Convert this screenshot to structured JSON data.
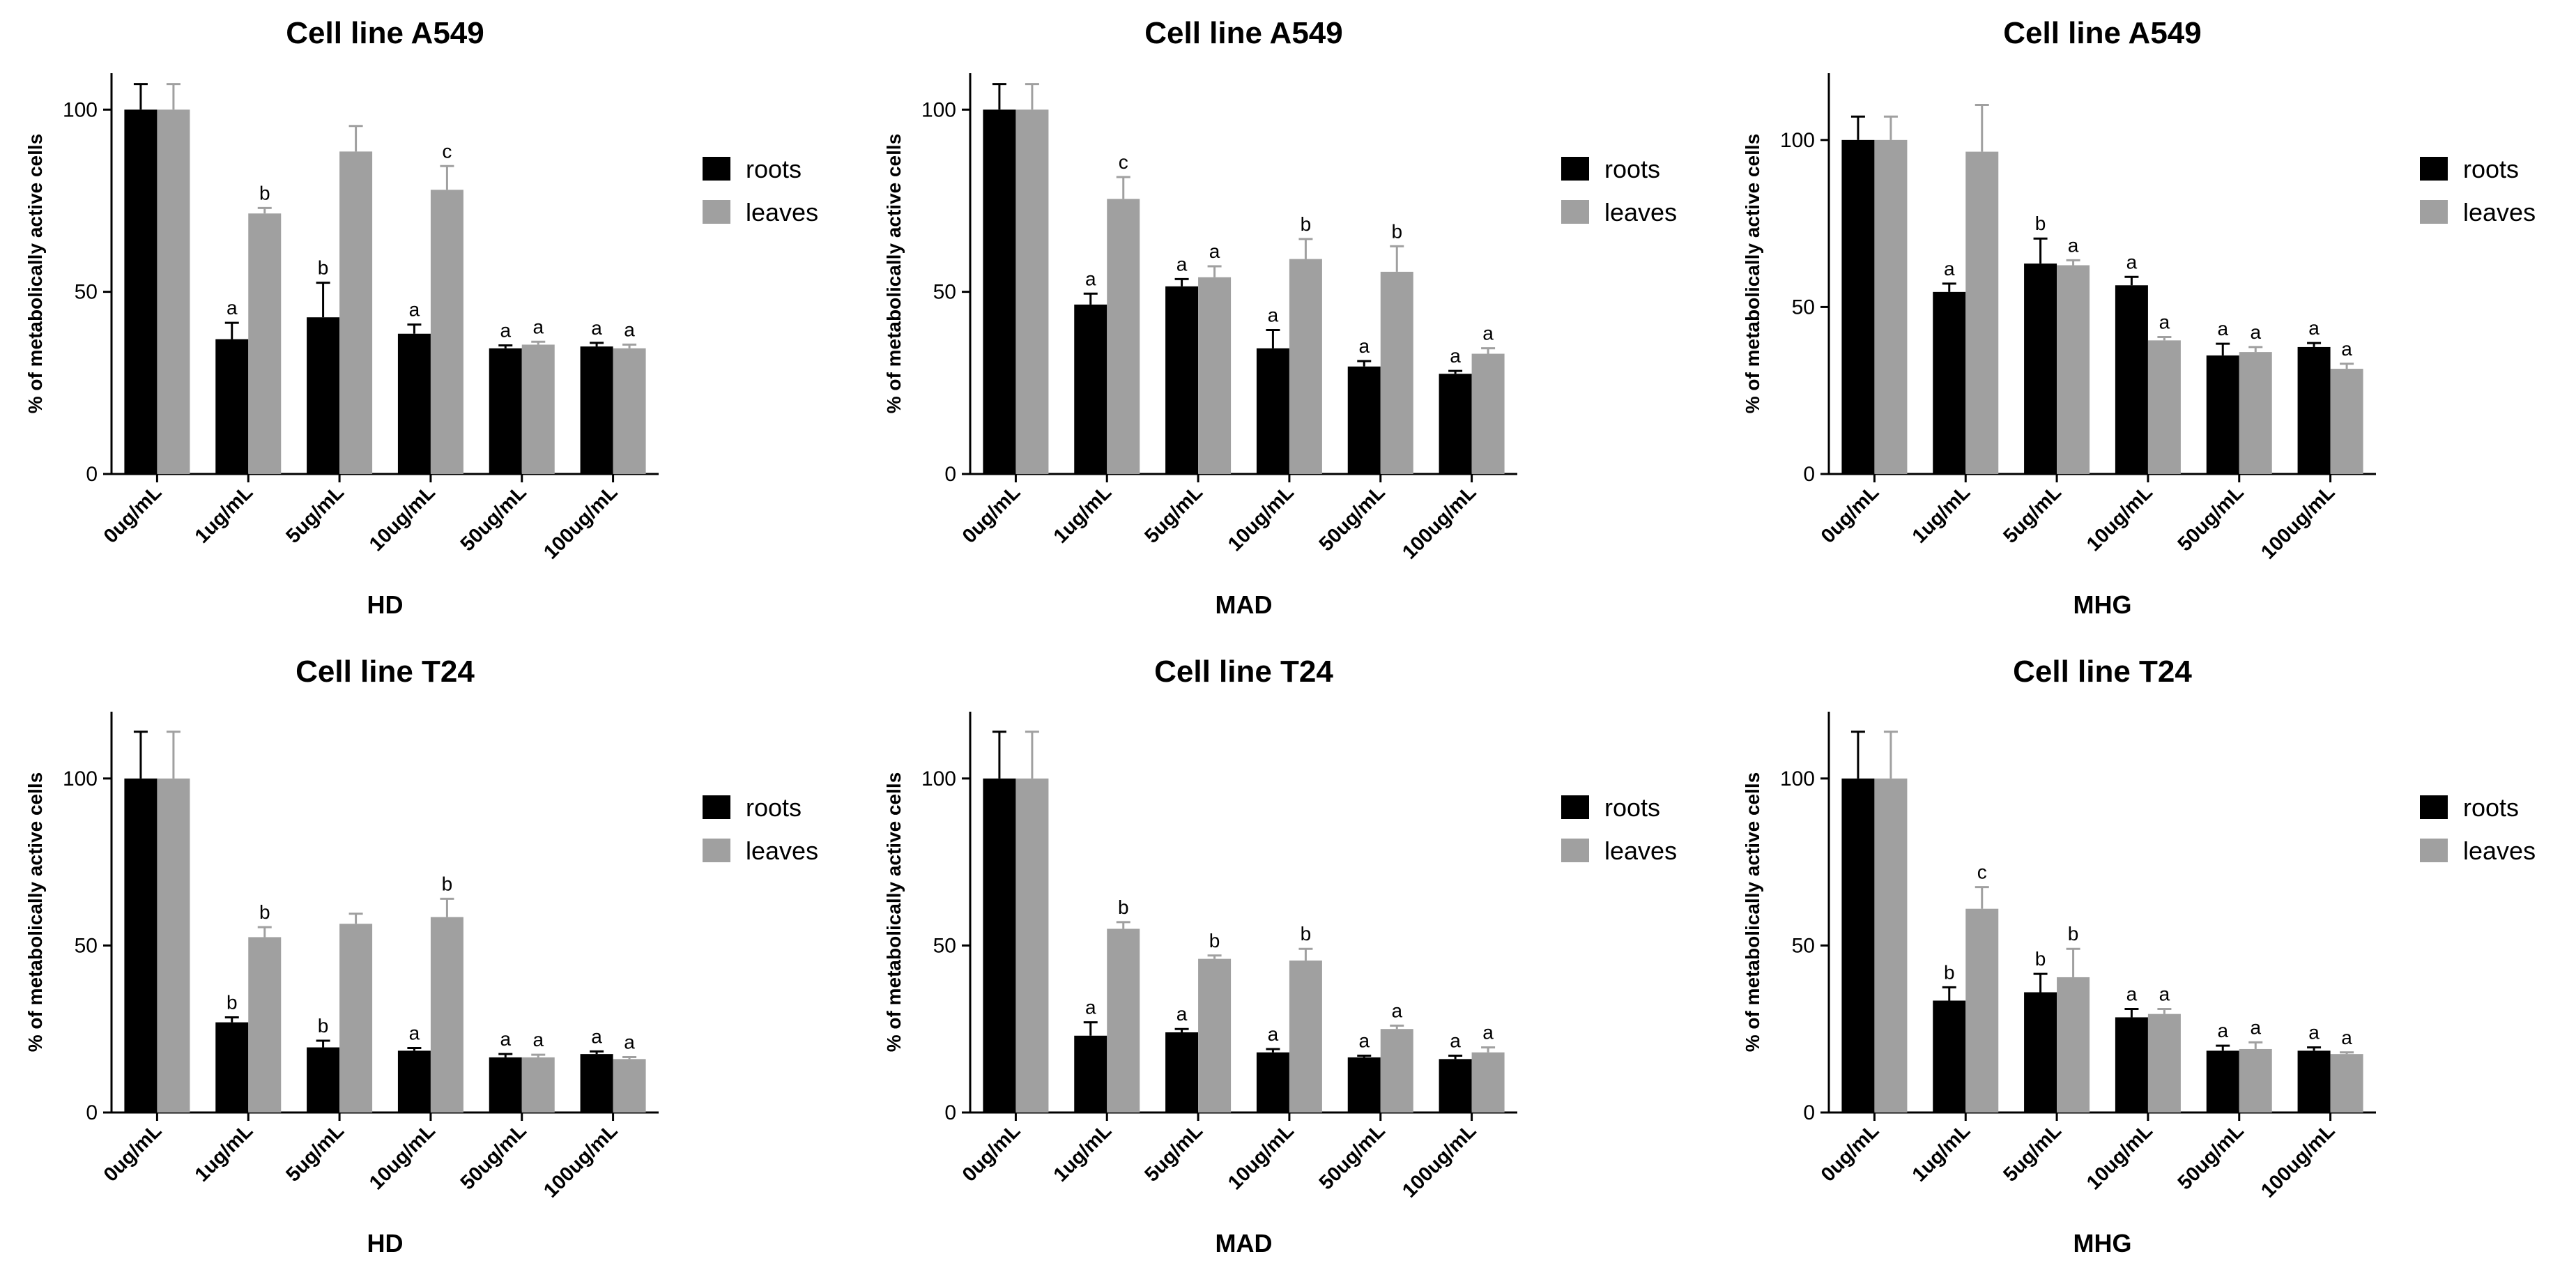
{
  "figure": {
    "legend": {
      "series": [
        "roots",
        "leaves"
      ]
    },
    "colors": {
      "roots": "#000000",
      "leaves": "#a0a0a0",
      "axis": "#000000"
    }
  },
  "chart_data": [
    {
      "type": "bar",
      "title": "Cell line A549",
      "xlabel": "HD",
      "ylabel": "% of metabolically active cells",
      "ylim": [
        0,
        110
      ],
      "yticks": [
        0,
        50,
        100
      ],
      "categories": [
        "0ug/mL",
        "1ug/mL",
        "5ug/mL",
        "10ug/mL",
        "50ug/mL",
        "100ug/mL"
      ],
      "series": [
        {
          "name": "roots",
          "values": [
            100,
            37,
            43,
            38.5,
            34.5,
            35
          ],
          "errors": [
            7,
            4.5,
            9.5,
            2.5,
            0.8,
            1
          ],
          "labels": [
            "",
            "a",
            "b",
            "a",
            "a",
            "a"
          ]
        },
        {
          "name": "leaves",
          "values": [
            100,
            71.5,
            88.5,
            78,
            35.5,
            34.5
          ],
          "errors": [
            7,
            1.5,
            7,
            6.5,
            0.8,
            1
          ],
          "labels": [
            "",
            "b",
            "",
            "c",
            "a",
            "a"
          ]
        }
      ]
    },
    {
      "type": "bar",
      "title": "Cell line A549",
      "xlabel": "MAD",
      "ylabel": "% of metabolically active cells",
      "ylim": [
        0,
        110
      ],
      "yticks": [
        0,
        50,
        100
      ],
      "categories": [
        "0ug/mL",
        "1ug/mL",
        "5ug/mL",
        "10ug/mL",
        "50ug/mL",
        "100ug/mL"
      ],
      "series": [
        {
          "name": "roots",
          "values": [
            100,
            46.5,
            51.5,
            34.5,
            29.5,
            27.5
          ],
          "errors": [
            7,
            3,
            2,
            5,
            1.5,
            0.8
          ],
          "labels": [
            "",
            "a",
            "a",
            "a",
            "a",
            "a"
          ]
        },
        {
          "name": "leaves",
          "values": [
            100,
            75.5,
            54,
            59,
            55.5,
            33
          ],
          "errors": [
            7,
            6,
            3,
            5.5,
            7,
            1.5
          ],
          "labels": [
            "",
            "c",
            "a",
            "b",
            "b",
            "a"
          ]
        }
      ]
    },
    {
      "type": "bar",
      "title": "Cell line A549",
      "xlabel": "MHG",
      "ylabel": "% of metabolically active cells",
      "ylim": [
        0,
        120
      ],
      "yticks": [
        0,
        50,
        100
      ],
      "categories": [
        "0ug/mL",
        "1ug/mL",
        "5ug/mL",
        "10ug/mL",
        "50ug/mL",
        "100ug/mL"
      ],
      "series": [
        {
          "name": "roots",
          "values": [
            100,
            54.5,
            63,
            56.5,
            35.5,
            38
          ],
          "errors": [
            7,
            2.5,
            7.5,
            2.5,
            3.5,
            1.2
          ],
          "labels": [
            "",
            "a",
            "b",
            "a",
            "a",
            "a"
          ]
        },
        {
          "name": "leaves",
          "values": [
            100,
            96.5,
            62.5,
            40,
            36.5,
            31.5
          ],
          "errors": [
            7,
            14,
            1.5,
            1,
            1.5,
            1.5
          ],
          "labels": [
            "",
            "",
            "a",
            "a",
            "a",
            "a"
          ]
        }
      ]
    },
    {
      "type": "bar",
      "title": "Cell line T24",
      "xlabel": "HD",
      "ylabel": "% of metabolically active cells",
      "ylim": [
        0,
        120
      ],
      "yticks": [
        0,
        50,
        100
      ],
      "categories": [
        "0ug/mL",
        "1ug/mL",
        "5ug/mL",
        "10ug/mL",
        "50ug/mL",
        "100ug/mL"
      ],
      "series": [
        {
          "name": "roots",
          "values": [
            100,
            27,
            19.5,
            18.5,
            16.5,
            17.5
          ],
          "errors": [
            14,
            1.5,
            2,
            0.8,
            1,
            0.8
          ],
          "labels": [
            "",
            "b",
            "b",
            "a",
            "a",
            "a"
          ]
        },
        {
          "name": "leaves",
          "values": [
            100,
            52.5,
            56.5,
            58.5,
            16.5,
            16
          ],
          "errors": [
            14,
            3,
            3,
            5.5,
            0.8,
            0.6
          ],
          "labels": [
            "",
            "b",
            "",
            "b",
            "a",
            "a"
          ]
        }
      ]
    },
    {
      "type": "bar",
      "title": "Cell line T24",
      "xlabel": "MAD",
      "ylabel": "% of metabolically active cells",
      "ylim": [
        0,
        120
      ],
      "yticks": [
        0,
        50,
        100
      ],
      "categories": [
        "0ug/mL",
        "1ug/mL",
        "5ug/mL",
        "10ug/mL",
        "50ug/mL",
        "100ug/mL"
      ],
      "series": [
        {
          "name": "roots",
          "values": [
            100,
            23,
            24,
            18,
            16.5,
            16
          ],
          "errors": [
            14,
            4,
            1,
            1,
            0.5,
            1
          ],
          "labels": [
            "",
            "a",
            "a",
            "a",
            "a",
            "a"
          ]
        },
        {
          "name": "leaves",
          "values": [
            100,
            55,
            46,
            45.5,
            25,
            18
          ],
          "errors": [
            14,
            2,
            1,
            3.5,
            1,
            1.5
          ],
          "labels": [
            "",
            "b",
            "b",
            "b",
            "a",
            "a"
          ]
        }
      ]
    },
    {
      "type": "bar",
      "title": "Cell line T24",
      "xlabel": "MHG",
      "ylabel": "% of metabolically active cells",
      "ylim": [
        0,
        120
      ],
      "yticks": [
        0,
        50,
        100
      ],
      "categories": [
        "0ug/mL",
        "1ug/mL",
        "5ug/mL",
        "10ug/mL",
        "50ug/mL",
        "100ug/mL"
      ],
      "series": [
        {
          "name": "roots",
          "values": [
            100,
            33.5,
            36,
            28.5,
            18.5,
            18.5
          ],
          "errors": [
            14,
            4,
            5.5,
            2.5,
            1.5,
            1
          ],
          "labels": [
            "",
            "b",
            "b",
            "a",
            "a",
            "a"
          ]
        },
        {
          "name": "leaves",
          "values": [
            100,
            61,
            40.5,
            29.5,
            19,
            17.5
          ],
          "errors": [
            14,
            6.5,
            8.5,
            1.5,
            2,
            0.5
          ],
          "labels": [
            "",
            "c",
            "b",
            "a",
            "a",
            "a"
          ]
        }
      ]
    }
  ]
}
